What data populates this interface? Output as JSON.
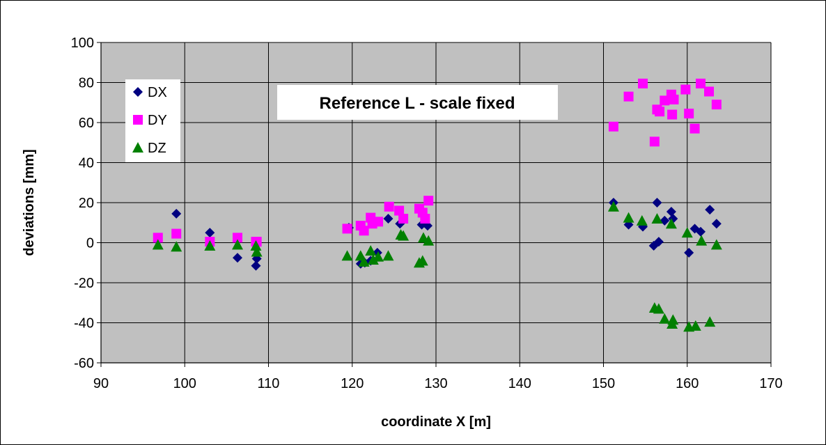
{
  "chart_data": {
    "type": "scatter",
    "title": "Reference  L - scale fixed",
    "xlabel": "coordinate X [m]",
    "ylabel": "deviations [mm]",
    "xlim": [
      90,
      170
    ],
    "ylim": [
      -60,
      100
    ],
    "x_ticks": [
      90,
      100,
      110,
      120,
      130,
      140,
      150,
      160,
      170
    ],
    "y_ticks": [
      -60,
      -40,
      -20,
      0,
      20,
      40,
      60,
      80,
      100
    ],
    "x_tick_labels": [
      "90",
      "100",
      "110",
      "120",
      "130",
      "140",
      "150",
      "160",
      "170"
    ],
    "y_tick_labels": [
      "-60",
      "-40",
      "-20",
      "0",
      "20",
      "40",
      "60",
      "80",
      "100"
    ],
    "grid": true,
    "plot_background": "#c0c0c0",
    "legend_position": "top-left",
    "series": [
      {
        "name": "DX",
        "marker": "diamond",
        "color": "#000080",
        "points": [
          [
            96.8,
            1
          ],
          [
            99,
            14.5
          ],
          [
            103,
            5
          ],
          [
            106.3,
            -7.5
          ],
          [
            108.5,
            -11.5
          ],
          [
            108.6,
            -8
          ],
          [
            119.6,
            7.5
          ],
          [
            121,
            -10.5
          ],
          [
            121.5,
            -10
          ],
          [
            122.2,
            -9
          ],
          [
            123,
            -5
          ],
          [
            124.3,
            12
          ],
          [
            125.7,
            9.5
          ],
          [
            128.3,
            9
          ],
          [
            128.6,
            10
          ],
          [
            129,
            8.5
          ],
          [
            151.2,
            20
          ],
          [
            153,
            9
          ],
          [
            154.7,
            8
          ],
          [
            156,
            -1.5
          ],
          [
            156.4,
            20
          ],
          [
            156.6,
            0.5
          ],
          [
            157.3,
            11
          ],
          [
            158.1,
            15.5
          ],
          [
            158.3,
            12
          ],
          [
            160.2,
            -5
          ],
          [
            160.9,
            7
          ],
          [
            161.6,
            5.5
          ],
          [
            162.7,
            16.5
          ],
          [
            163.5,
            9.5
          ]
        ]
      },
      {
        "name": "DY",
        "marker": "square",
        "color": "#ff00ff",
        "points": [
          [
            96.8,
            2.5
          ],
          [
            99,
            4.5
          ],
          [
            103,
            0.5
          ],
          [
            106.3,
            2.5
          ],
          [
            108.5,
            0.5
          ],
          [
            108.6,
            0.5
          ],
          [
            119.4,
            7
          ],
          [
            121,
            8.5
          ],
          [
            121.4,
            6
          ],
          [
            122.2,
            12.5
          ],
          [
            122.4,
            9.5
          ],
          [
            123.1,
            10.5
          ],
          [
            124.4,
            18
          ],
          [
            125.6,
            16
          ],
          [
            126.1,
            12
          ],
          [
            128,
            17
          ],
          [
            128.4,
            15
          ],
          [
            128.7,
            12
          ],
          [
            129.1,
            21
          ],
          [
            151.2,
            58
          ],
          [
            153,
            73
          ],
          [
            154.7,
            79.5
          ],
          [
            156.1,
            50.5
          ],
          [
            156.4,
            66.5
          ],
          [
            156.7,
            65.5
          ],
          [
            157.3,
            71
          ],
          [
            158.1,
            74
          ],
          [
            158.2,
            64
          ],
          [
            158.4,
            71.5
          ],
          [
            159.8,
            76.5
          ],
          [
            160.2,
            64.5
          ],
          [
            160.9,
            57
          ],
          [
            161.6,
            79.5
          ],
          [
            162.6,
            75.5
          ],
          [
            163.5,
            69
          ]
        ]
      },
      {
        "name": "DZ",
        "marker": "triangle",
        "color": "#008000",
        "points": [
          [
            96.8,
            -1
          ],
          [
            99,
            -2
          ],
          [
            103,
            -1.5
          ],
          [
            106.3,
            -1
          ],
          [
            108.5,
            -1.5
          ],
          [
            108.6,
            -4.5
          ],
          [
            119.4,
            -6.5
          ],
          [
            121,
            -6.5
          ],
          [
            121.4,
            -9.5
          ],
          [
            122.2,
            -4
          ],
          [
            122.5,
            -8.5
          ],
          [
            123.1,
            -7
          ],
          [
            124.3,
            -6.5
          ],
          [
            125.8,
            4
          ],
          [
            126.1,
            3.5
          ],
          [
            128,
            -10
          ],
          [
            128.4,
            -9
          ],
          [
            128.5,
            2.5
          ],
          [
            129.1,
            1
          ],
          [
            151.2,
            18
          ],
          [
            153,
            12.5
          ],
          [
            154.6,
            11
          ],
          [
            156.1,
            -32.5
          ],
          [
            156.4,
            12
          ],
          [
            156.6,
            -33
          ],
          [
            157.3,
            -38
          ],
          [
            158.1,
            9.5
          ],
          [
            158.3,
            -38.5
          ],
          [
            158.2,
            -40.5
          ],
          [
            160,
            5
          ],
          [
            160.2,
            -42
          ],
          [
            161,
            -41.5
          ],
          [
            161.7,
            1
          ],
          [
            162.7,
            -39.5
          ],
          [
            163.5,
            -1
          ]
        ]
      }
    ]
  }
}
